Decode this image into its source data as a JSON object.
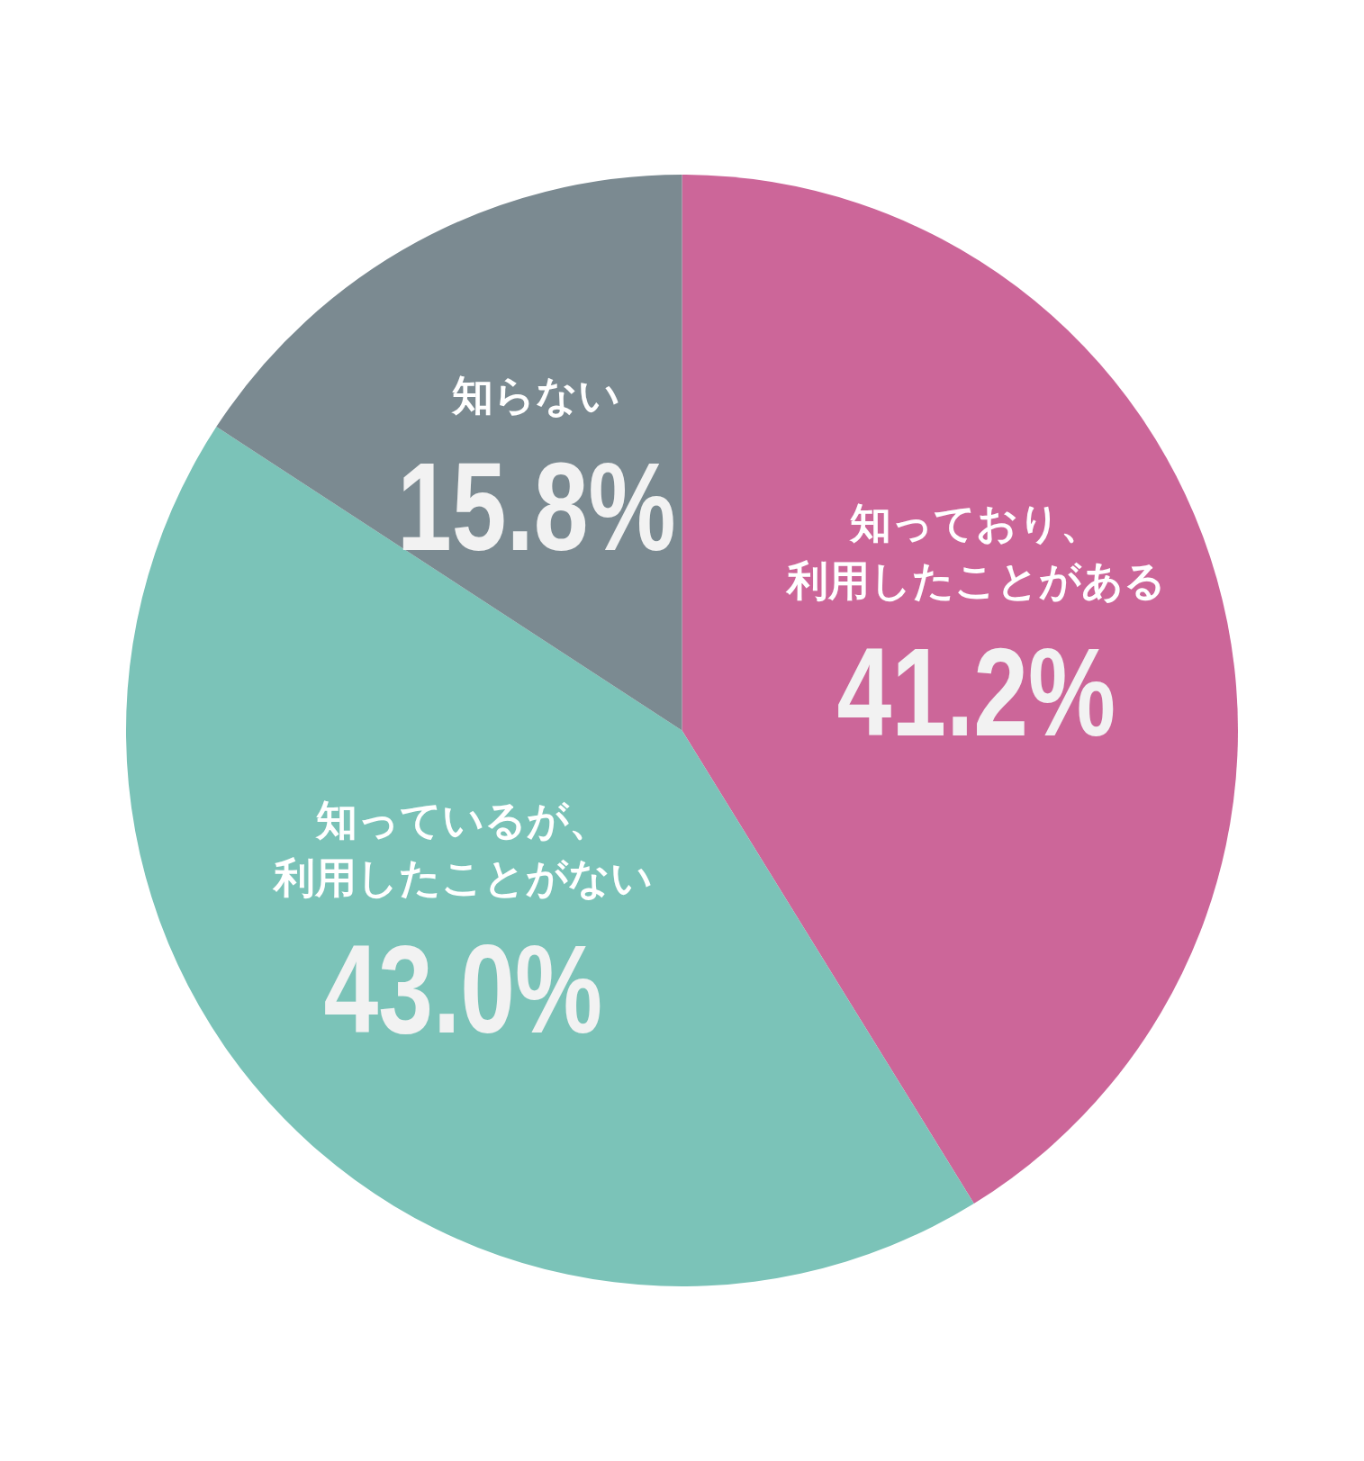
{
  "chart_data": {
    "type": "pie",
    "categories": [
      "知っており、利用したことがある",
      "知っているが、利用したことがない",
      "知らない"
    ],
    "values": [
      41.2,
      43.0,
      15.8
    ],
    "value_labels": [
      "41.2%",
      "43.0%",
      "15.8%"
    ],
    "colors": [
      "#cc6699",
      "#7bc3b8",
      "#7b8a91"
    ],
    "legend": false
  }
}
